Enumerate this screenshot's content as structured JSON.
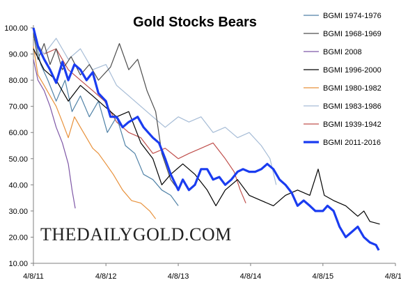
{
  "chart_data": {
    "type": "line",
    "title": "Gold Stocks Bears",
    "watermark": "THEDAILYGOLD.COM",
    "xlabel": "",
    "ylabel": "",
    "ylim": [
      10,
      100
    ],
    "y_ticks": [
      "10.00",
      "20.00",
      "30.00",
      "40.00",
      "50.00",
      "60.00",
      "70.00",
      "80.00",
      "90.00",
      "100.00"
    ],
    "x_ticks": [
      "4/8/11",
      "4/8/12",
      "4/8/13",
      "4/8/14",
      "4/8/15",
      "4/8/16"
    ],
    "x_tick_dates": [
      "2011-04-08",
      "2012-04-08",
      "2013-04-08",
      "2014-04-08",
      "2015-04-08",
      "2016-04-08"
    ],
    "grid": false,
    "legend_position": "top-right",
    "series": [
      {
        "name": "BGMI 1974-1976",
        "color": "#4f81a6",
        "width": 1.2,
        "points": [
          [
            "2011-04-08",
            99
          ],
          [
            "2011-05-15",
            86
          ],
          [
            "2011-06-20",
            80
          ],
          [
            "2011-08-01",
            72
          ],
          [
            "2011-09-15",
            80
          ],
          [
            "2011-10-20",
            68
          ],
          [
            "2011-12-01",
            74
          ],
          [
            "2012-01-15",
            66
          ],
          [
            "2012-03-01",
            72
          ],
          [
            "2012-04-15",
            60
          ],
          [
            "2012-06-01",
            66
          ],
          [
            "2012-07-15",
            55
          ],
          [
            "2012-09-01",
            52
          ],
          [
            "2012-10-15",
            44
          ],
          [
            "2012-12-01",
            42
          ],
          [
            "2013-01-15",
            38
          ],
          [
            "2013-03-01",
            36
          ],
          [
            "2013-04-08",
            32
          ]
        ]
      },
      {
        "name": "BGMI 1968-1969",
        "color": "#4d4d4d",
        "width": 1.2,
        "points": [
          [
            "2011-04-08",
            98
          ],
          [
            "2011-05-01",
            88
          ],
          [
            "2011-06-01",
            94
          ],
          [
            "2011-07-01",
            86
          ],
          [
            "2011-08-01",
            92
          ],
          [
            "2011-09-01",
            84
          ],
          [
            "2011-10-15",
            89
          ],
          [
            "2011-12-01",
            82
          ],
          [
            "2012-01-15",
            86
          ],
          [
            "2012-03-01",
            80
          ],
          [
            "2012-05-01",
            85
          ],
          [
            "2012-06-15",
            94
          ],
          [
            "2012-08-01",
            84
          ],
          [
            "2012-09-15",
            88
          ],
          [
            "2012-11-01",
            76
          ],
          [
            "2012-12-15",
            68
          ],
          [
            "2013-01-15",
            52
          ],
          [
            "2013-03-01",
            42
          ],
          [
            "2013-04-08",
            38
          ]
        ]
      },
      {
        "name": "BGMI 2008",
        "color": "#7e57a6",
        "width": 1.2,
        "points": [
          [
            "2011-04-08",
            88
          ],
          [
            "2011-05-01",
            80
          ],
          [
            "2011-06-01",
            76
          ],
          [
            "2011-07-01",
            70
          ],
          [
            "2011-08-01",
            62
          ],
          [
            "2011-09-01",
            56
          ],
          [
            "2011-10-01",
            48
          ],
          [
            "2011-10-20",
            38
          ],
          [
            "2011-11-05",
            31
          ]
        ]
      },
      {
        "name": "BGMI 1996-2000",
        "color": "#000000",
        "width": 1.2,
        "points": [
          [
            "2011-04-08",
            92
          ],
          [
            "2011-06-01",
            84
          ],
          [
            "2011-08-01",
            80
          ],
          [
            "2011-10-01",
            72
          ],
          [
            "2011-12-01",
            78
          ],
          [
            "2012-02-01",
            74
          ],
          [
            "2012-04-01",
            70
          ],
          [
            "2012-06-01",
            66
          ],
          [
            "2012-08-01",
            68
          ],
          [
            "2012-10-01",
            56
          ],
          [
            "2012-12-01",
            50
          ],
          [
            "2013-01-15",
            40
          ],
          [
            "2013-03-01",
            44
          ],
          [
            "2013-05-01",
            48
          ],
          [
            "2013-07-01",
            44
          ],
          [
            "2013-09-01",
            38
          ],
          [
            "2013-10-15",
            32
          ],
          [
            "2013-12-01",
            38
          ],
          [
            "2014-02-01",
            42
          ],
          [
            "2014-04-01",
            36
          ],
          [
            "2014-06-01",
            34
          ],
          [
            "2014-08-01",
            32
          ],
          [
            "2014-10-01",
            36
          ],
          [
            "2014-12-01",
            38
          ],
          [
            "2015-02-01",
            36
          ],
          [
            "2015-03-15",
            46
          ],
          [
            "2015-04-15",
            36
          ],
          [
            "2015-06-01",
            34
          ],
          [
            "2015-08-01",
            32
          ],
          [
            "2015-10-01",
            28
          ],
          [
            "2015-11-01",
            30
          ],
          [
            "2015-12-01",
            26
          ],
          [
            "2016-01-20",
            25
          ]
        ]
      },
      {
        "name": "BGMI 1980-1982",
        "color": "#e8913b",
        "width": 1.2,
        "points": [
          [
            "2011-04-08",
            93
          ],
          [
            "2011-05-01",
            82
          ],
          [
            "2011-06-01",
            78
          ],
          [
            "2011-07-01",
            74
          ],
          [
            "2011-08-01",
            70
          ],
          [
            "2011-09-01",
            64
          ],
          [
            "2011-10-01",
            58
          ],
          [
            "2011-11-01",
            66
          ],
          [
            "2011-12-01",
            62
          ],
          [
            "2012-01-01",
            58
          ],
          [
            "2012-02-01",
            54
          ],
          [
            "2012-03-01",
            52
          ],
          [
            "2012-04-08",
            48
          ],
          [
            "2012-05-15",
            44
          ],
          [
            "2012-07-01",
            38
          ],
          [
            "2012-08-15",
            34
          ],
          [
            "2012-10-01",
            33
          ],
          [
            "2012-11-15",
            30
          ],
          [
            "2012-12-15",
            27
          ]
        ]
      },
      {
        "name": "BGMI 1983-1986",
        "color": "#a6bcd6",
        "width": 1.2,
        "points": [
          [
            "2011-04-08",
            96
          ],
          [
            "2011-06-01",
            90
          ],
          [
            "2011-08-01",
            96
          ],
          [
            "2011-10-01",
            88
          ],
          [
            "2011-12-01",
            92
          ],
          [
            "2012-02-01",
            84
          ],
          [
            "2012-04-08",
            86
          ],
          [
            "2012-06-01",
            78
          ],
          [
            "2012-08-01",
            74
          ],
          [
            "2012-10-01",
            70
          ],
          [
            "2012-12-01",
            66
          ],
          [
            "2013-02-01",
            62
          ],
          [
            "2013-04-08",
            66
          ],
          [
            "2013-06-01",
            64
          ],
          [
            "2013-08-01",
            66
          ],
          [
            "2013-10-01",
            60
          ],
          [
            "2013-12-01",
            62
          ],
          [
            "2014-02-01",
            58
          ],
          [
            "2014-04-01",
            60
          ],
          [
            "2014-06-01",
            55
          ],
          [
            "2014-07-15",
            50
          ],
          [
            "2014-08-15",
            40
          ]
        ]
      },
      {
        "name": "BGMI 1939-1942",
        "color": "#c0504d",
        "width": 1.2,
        "points": [
          [
            "2011-04-08",
            96
          ],
          [
            "2011-06-01",
            90
          ],
          [
            "2011-08-01",
            92
          ],
          [
            "2011-10-01",
            84
          ],
          [
            "2011-12-01",
            80
          ],
          [
            "2012-02-01",
            76
          ],
          [
            "2012-04-01",
            72
          ],
          [
            "2012-06-01",
            64
          ],
          [
            "2012-08-01",
            60
          ],
          [
            "2012-10-01",
            58
          ],
          [
            "2012-12-01",
            52
          ],
          [
            "2013-02-01",
            54
          ],
          [
            "2013-04-08",
            50
          ],
          [
            "2013-06-01",
            52
          ],
          [
            "2013-08-01",
            54
          ],
          [
            "2013-10-01",
            56
          ],
          [
            "2013-12-01",
            50
          ],
          [
            "2014-01-15",
            45
          ],
          [
            "2014-02-15",
            38
          ],
          [
            "2014-03-15",
            33
          ]
        ]
      },
      {
        "name": "BGMI 2011-2016",
        "color": "#1a3cf0",
        "width": 3.2,
        "points": [
          [
            "2011-04-08",
            100
          ],
          [
            "2011-05-01",
            93
          ],
          [
            "2011-06-01",
            88
          ],
          [
            "2011-07-01",
            84
          ],
          [
            "2011-08-01",
            79
          ],
          [
            "2011-09-01",
            87
          ],
          [
            "2011-10-01",
            80
          ],
          [
            "2011-11-01",
            86
          ],
          [
            "2011-12-01",
            84
          ],
          [
            "2012-01-01",
            80
          ],
          [
            "2012-02-01",
            83
          ],
          [
            "2012-03-01",
            75
          ],
          [
            "2012-04-08",
            72
          ],
          [
            "2012-05-01",
            66
          ],
          [
            "2012-06-01",
            66
          ],
          [
            "2012-07-01",
            62
          ],
          [
            "2012-08-01",
            64
          ],
          [
            "2012-09-15",
            66
          ],
          [
            "2012-10-15",
            62
          ],
          [
            "2012-12-01",
            58
          ],
          [
            "2013-01-01",
            56
          ],
          [
            "2013-02-01",
            50
          ],
          [
            "2013-03-01",
            44
          ],
          [
            "2013-04-08",
            38
          ],
          [
            "2013-05-01",
            42
          ],
          [
            "2013-06-01",
            38
          ],
          [
            "2013-07-01",
            40
          ],
          [
            "2013-08-01",
            46
          ],
          [
            "2013-09-01",
            46
          ],
          [
            "2013-10-01",
            42
          ],
          [
            "2013-11-01",
            43
          ],
          [
            "2013-12-01",
            40
          ],
          [
            "2014-01-01",
            42
          ],
          [
            "2014-02-01",
            45
          ],
          [
            "2014-03-01",
            46
          ],
          [
            "2014-04-01",
            45
          ],
          [
            "2014-05-01",
            45
          ],
          [
            "2014-06-01",
            46
          ],
          [
            "2014-07-01",
            48
          ],
          [
            "2014-08-01",
            46
          ],
          [
            "2014-09-01",
            42
          ],
          [
            "2014-10-01",
            40
          ],
          [
            "2014-11-01",
            37
          ],
          [
            "2014-12-01",
            32
          ],
          [
            "2015-01-01",
            34
          ],
          [
            "2015-02-01",
            32
          ],
          [
            "2015-03-01",
            30
          ],
          [
            "2015-04-08",
            30
          ],
          [
            "2015-05-01",
            32
          ],
          [
            "2015-06-01",
            30
          ],
          [
            "2015-07-01",
            24
          ],
          [
            "2015-08-01",
            20
          ],
          [
            "2015-09-01",
            22
          ],
          [
            "2015-10-01",
            24
          ],
          [
            "2015-11-01",
            20
          ],
          [
            "2015-12-01",
            18
          ],
          [
            "2016-01-01",
            17
          ],
          [
            "2016-01-15",
            15
          ]
        ]
      }
    ]
  }
}
